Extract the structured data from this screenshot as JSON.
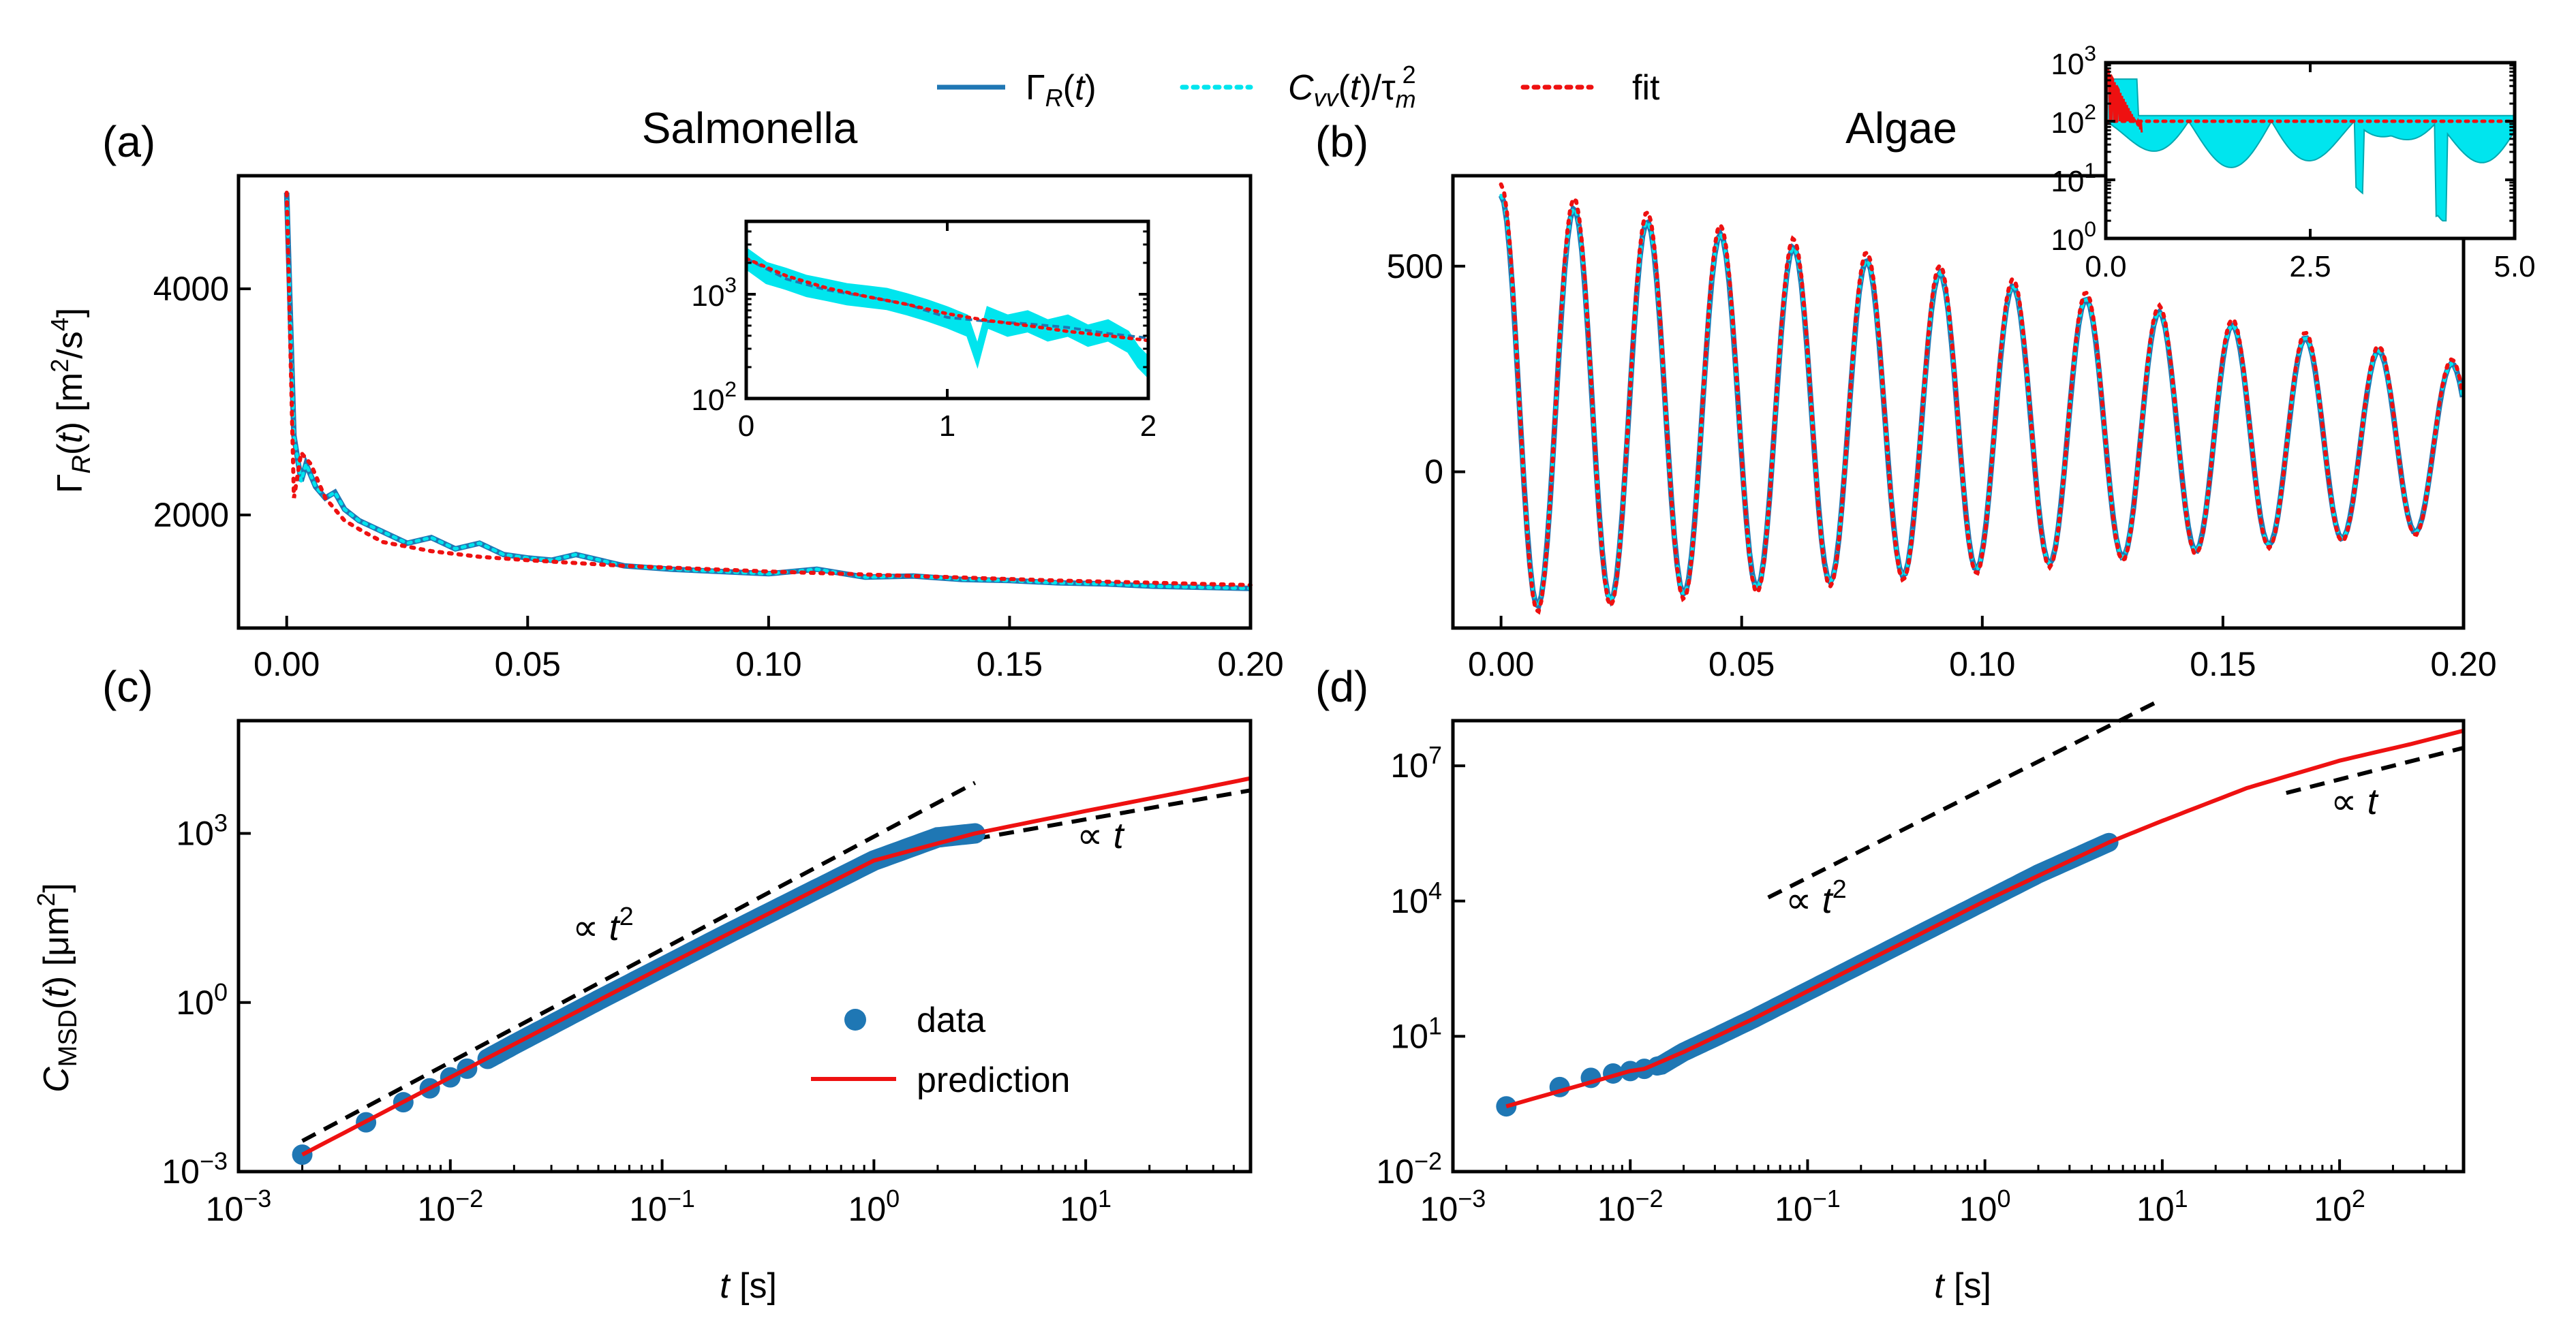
{
  "chart_data": [
    {
      "id": "a",
      "type": "line",
      "panel_label": "(a)",
      "title": "Salmonella",
      "ylabel": "Γ_R(t) [m²/s⁴]",
      "xlim": [
        -0.01,
        0.2
      ],
      "ylim": [
        1000,
        5000
      ],
      "xticks": [
        0.0,
        0.05,
        0.1,
        0.15,
        0.2
      ],
      "xtick_labels": [
        "0.00",
        "0.05",
        "0.10",
        "0.15",
        "0.20"
      ],
      "yticks": [
        2000,
        4000
      ],
      "ytick_labels": [
        "2000",
        "4000"
      ],
      "series": [
        {
          "name": "Γ_R(t)",
          "color": "#1f77b4",
          "style": "solid",
          "x": [
            0,
            0.0015,
            0.003,
            0.004,
            0.006,
            0.008,
            0.01,
            0.012,
            0.015,
            0.02,
            0.025,
            0.03,
            0.035,
            0.04,
            0.045,
            0.05,
            0.055,
            0.06,
            0.07,
            0.08,
            0.09,
            0.1,
            0.11,
            0.12,
            0.13,
            0.14,
            0.15,
            0.16,
            0.17,
            0.18,
            0.19,
            0.2
          ],
          "y": [
            4850,
            2700,
            2300,
            2450,
            2250,
            2150,
            2200,
            2050,
            1950,
            1850,
            1750,
            1800,
            1700,
            1750,
            1650,
            1620,
            1600,
            1650,
            1550,
            1520,
            1500,
            1480,
            1520,
            1450,
            1460,
            1430,
            1420,
            1400,
            1390,
            1370,
            1360,
            1350
          ]
        },
        {
          "name": "C_vv(t)/τ_m²",
          "color": "#00e5ee",
          "style": "dotted",
          "x": [
            0,
            0.0015,
            0.003,
            0.004,
            0.006,
            0.008,
            0.01,
            0.012,
            0.015,
            0.02,
            0.025,
            0.03,
            0.035,
            0.04,
            0.045,
            0.05,
            0.055,
            0.06,
            0.07,
            0.08,
            0.09,
            0.1,
            0.11,
            0.12,
            0.13,
            0.14,
            0.15,
            0.16,
            0.17,
            0.18,
            0.19,
            0.2
          ],
          "y": [
            4850,
            2700,
            2300,
            2450,
            2250,
            2150,
            2200,
            2050,
            1950,
            1850,
            1750,
            1800,
            1700,
            1750,
            1650,
            1620,
            1600,
            1650,
            1550,
            1520,
            1500,
            1480,
            1520,
            1450,
            1460,
            1430,
            1420,
            1400,
            1390,
            1370,
            1360,
            1350
          ]
        },
        {
          "name": "fit",
          "color": "#ee1111",
          "style": "dotted",
          "x": [
            0,
            0.0015,
            0.003,
            0.005,
            0.008,
            0.012,
            0.016,
            0.02,
            0.03,
            0.04,
            0.05,
            0.07,
            0.1,
            0.13,
            0.16,
            0.2
          ],
          "y": [
            4850,
            2150,
            2550,
            2450,
            2150,
            1950,
            1850,
            1760,
            1680,
            1630,
            1600,
            1550,
            1500,
            1460,
            1420,
            1380
          ]
        }
      ],
      "inset": {
        "xlim": [
          0,
          2
        ],
        "ylim": [
          100,
          5000
        ],
        "yscale": "log",
        "xticks": [
          0,
          1,
          2
        ],
        "xtick_labels": [
          "0",
          "1",
          "2"
        ],
        "yticks": [
          100,
          1000
        ],
        "ytick_labels": [
          "10²",
          "10³"
        ],
        "series": [
          {
            "name": "C_vv(t)/τ_m²",
            "color": "#00e5ee",
            "x": [
              0,
              0.1,
              0.2,
              0.3,
              0.4,
              0.5,
              0.6,
              0.7,
              0.8,
              0.9,
              1.0,
              1.1,
              1.15,
              1.2,
              1.3,
              1.4,
              1.5,
              1.6,
              1.7,
              1.8,
              1.9,
              1.95,
              2.0
            ],
            "y": [
              2200,
              1600,
              1400,
              1200,
              1100,
              1000,
              950,
              900,
              800,
              700,
              600,
              500,
              260,
              600,
              500,
              550,
              450,
              500,
              400,
              450,
              350,
              250,
              200
            ]
          },
          {
            "name": "Γ_R(t)",
            "color": "#1f77b4",
            "x": [
              0,
              0.2,
              0.4,
              0.6,
              0.8,
              1.0,
              1.2,
              1.4,
              1.6,
              1.8,
              2.0
            ],
            "y": [
              2200,
              1400,
              1100,
              950,
              800,
              600,
              550,
              520,
              480,
              420,
              380
            ]
          },
          {
            "name": "fit",
            "color": "#ee1111",
            "x": [
              0,
              0.2,
              0.4,
              0.6,
              0.8,
              1.0,
              1.2,
              1.4,
              1.6,
              1.8,
              2.0
            ],
            "y": [
              2200,
              1500,
              1150,
              950,
              800,
              650,
              560,
              500,
              440,
              400,
              360
            ]
          }
        ]
      }
    },
    {
      "id": "b",
      "type": "line",
      "panel_label": "(b)",
      "title": "Algae",
      "xlim": [
        -0.01,
        0.2
      ],
      "ylim": [
        -380,
        720
      ],
      "xticks": [
        0.0,
        0.05,
        0.1,
        0.15,
        0.2
      ],
      "xtick_labels": [
        "0.00",
        "0.05",
        "0.10",
        "0.15",
        "0.20"
      ],
      "yticks": [
        0,
        500
      ],
      "ytick_labels": [
        "0",
        "500"
      ],
      "oscillation": {
        "period": 0.0152,
        "amplitude0": 560,
        "offset": 120,
        "decay_amplitude_end": 220
      },
      "series_names": [
        "Γ_R(t)",
        "C_vv(t)/τ_m²",
        "fit"
      ],
      "inset": {
        "xlim": [
          0,
          5
        ],
        "ylim": [
          1,
          1000
        ],
        "yscale": "log",
        "xticks": [
          0,
          2.5,
          5.0
        ],
        "xtick_labels": [
          "0.0",
          "2.5",
          "5.0"
        ],
        "yticks": [
          1,
          10,
          100,
          1000
        ],
        "ytick_labels": [
          "10⁰",
          "10¹",
          "10²",
          "10³"
        ],
        "series": [
          {
            "name": "C_vv(t)/τ_m²",
            "color": "#00e5ee",
            "baseline": 100
          },
          {
            "name": "fit",
            "color": "#ee1111",
            "baseline": 100
          }
        ]
      }
    },
    {
      "id": "c",
      "type": "scatter",
      "panel_label": "(c)",
      "xlabel": "t [s]",
      "ylabel": "C_MSD(t) [μm²]",
      "xscale": "log",
      "yscale": "log",
      "xlim": [
        0.001,
        60
      ],
      "ylim": [
        0.001,
        100000
      ],
      "xticks": [
        0.001,
        0.01,
        0.1,
        1,
        10
      ],
      "xtick_labels": [
        "10⁻³",
        "10⁻²",
        "10⁻¹",
        "10⁰",
        "10¹"
      ],
      "yticks": [
        0.001,
        1,
        1000
      ],
      "ytick_labels": [
        "10⁻³",
        "10⁰",
        "10³"
      ],
      "series": [
        {
          "name": "data",
          "color": "#1f77b4",
          "x": [
            0.002,
            0.004,
            0.006,
            0.008,
            0.01,
            0.012,
            0.015,
            0.02,
            0.03,
            0.05,
            0.1,
            0.2,
            0.5,
            1.0,
            2.0,
            3.0
          ],
          "y": [
            0.002,
            0.0075,
            0.017,
            0.03,
            0.047,
            0.067,
            0.1,
            0.18,
            0.4,
            1.1,
            4.2,
            16,
            90,
            330,
            850,
            1000
          ]
        },
        {
          "name": "prediction",
          "color": "#ee1111",
          "x": [
            0.002,
            0.01,
            0.1,
            1.0,
            3.0,
            10,
            30,
            60
          ],
          "y": [
            0.002,
            0.047,
            4.2,
            330,
            1000,
            2500,
            5600,
            9500
          ]
        },
        {
          "name": "∝ t²",
          "color": "#000000",
          "style": "dashed",
          "x": [
            0.002,
            3.0
          ],
          "y": [
            0.0035,
            7900
          ]
        },
        {
          "name": "∝ t",
          "color": "#000000",
          "style": "dashed",
          "x": [
            3.0,
            60
          ],
          "y": [
            800,
            5800
          ]
        }
      ],
      "annotations": [
        "∝ t²",
        "∝ t"
      ],
      "legend": [
        "data",
        "prediction"
      ]
    },
    {
      "id": "d",
      "type": "scatter",
      "panel_label": "(d)",
      "xlabel": "t [s]",
      "xscale": "log",
      "yscale": "log",
      "xlim": [
        0.001,
        500
      ],
      "ylim": [
        0.01,
        100000000
      ],
      "xticks": [
        0.001,
        0.01,
        0.1,
        1,
        10,
        100
      ],
      "xtick_labels": [
        "10⁻³",
        "10⁻²",
        "10⁻¹",
        "10⁰",
        "10¹",
        "10²"
      ],
      "yticks": [
        0.01,
        10,
        10000,
        10000000
      ],
      "ytick_labels": [
        "10⁻²",
        "10¹",
        "10⁴",
        "10⁷"
      ],
      "series": [
        {
          "name": "data",
          "color": "#1f77b4",
          "x": [
            0.002,
            0.004,
            0.006,
            0.008,
            0.01,
            0.012,
            0.015,
            0.02,
            0.03,
            0.05,
            0.1,
            0.2,
            0.5,
            1.0,
            2.0,
            5.0
          ],
          "y": [
            0.28,
            0.75,
            1.2,
            1.5,
            1.7,
            1.9,
            2.3,
            4.5,
            9.5,
            25,
            100,
            400,
            2500,
            10000,
            40000,
            200000
          ]
        },
        {
          "name": "prediction",
          "color": "#ee1111",
          "x": [
            0.002,
            0.01,
            0.012,
            0.02,
            0.05,
            0.1,
            1.0,
            5.0,
            10,
            30,
            100,
            250,
            500
          ],
          "y": [
            0.28,
            1.7,
            1.9,
            4.5,
            25,
            100,
            10000,
            200000,
            600000,
            3200000,
            13000000,
            30000000,
            60000000
          ]
        },
        {
          "name": "∝ t²",
          "color": "#000000",
          "style": "dashed",
          "x": [
            0.06,
            10
          ],
          "y": [
            12000,
            300000000
          ]
        },
        {
          "name": "∝ t",
          "color": "#000000",
          "style": "dashed",
          "x": [
            50,
            500
          ],
          "y": [
            2500000,
            25000000
          ]
        }
      ],
      "annotations": [
        "∝ t²",
        "∝ t"
      ]
    }
  ],
  "legend": {
    "placement": "top-center",
    "entries": [
      {
        "label": "Γ_R(t)",
        "color": "#1f77b4",
        "style": "solid"
      },
      {
        "label": "C_vv(t)/τ_m²",
        "color": "#00e5ee",
        "style": "dotted"
      },
      {
        "label": "fit",
        "color": "#ee1111",
        "style": "dotted"
      }
    ]
  }
}
